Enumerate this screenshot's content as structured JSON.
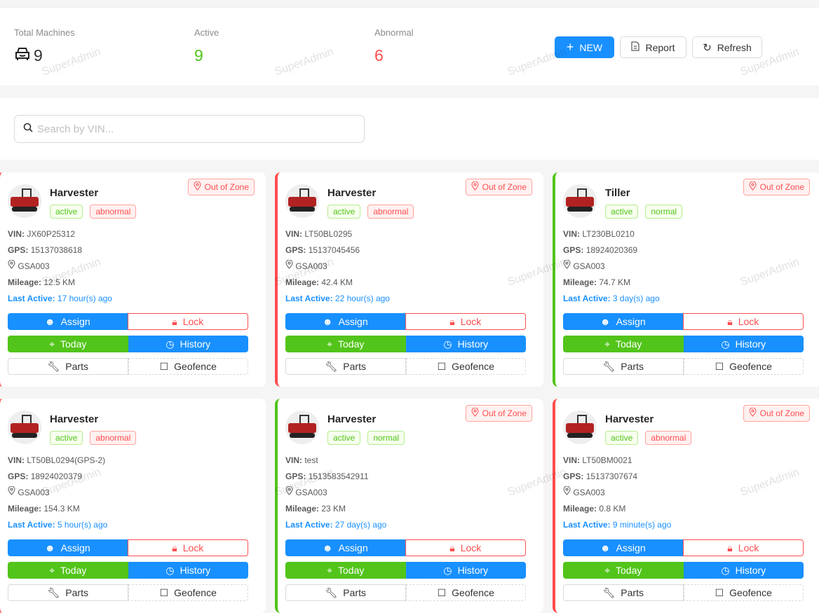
{
  "stats": {
    "total_label": "Total Machines",
    "total_value": "9",
    "active_label": "Active",
    "active_value": "9",
    "abnormal_label": "Abnormal",
    "abnormal_value": "6"
  },
  "toolbar": {
    "new_label": "NEW",
    "report_label": "Report",
    "refresh_label": "Refresh"
  },
  "search": {
    "placeholder": "Search by VIN...",
    "value": ""
  },
  "watermark": "SuperAdmin",
  "colors": {
    "primary": "#1890ff",
    "success": "#52c41a",
    "danger": "#ff4d4f"
  },
  "labels": {
    "vin": "VIN:",
    "gps": "GPS:",
    "mileage": "Mileage:",
    "last_active": "Last Active:",
    "out_of_zone": "Out of Zone",
    "assign": "Assign",
    "lock": "Lock",
    "today": "Today",
    "history": "History",
    "parts": "Parts",
    "geofence": "Geofence"
  },
  "machines": [
    {
      "name": "Harvester",
      "status": "active",
      "health": "abnormal",
      "out_of_zone": true,
      "vin": "JX60P25312",
      "gps": "15137038618",
      "zone": "GSA003",
      "mileage": "12.5 KM",
      "last_active": "17 hour(s) ago"
    },
    {
      "name": "Harvester",
      "status": "active",
      "health": "abnormal",
      "out_of_zone": true,
      "vin": "LT50BL0295",
      "gps": "15137045456",
      "zone": "GSA003",
      "mileage": "42.4 KM",
      "last_active": "22 hour(s) ago"
    },
    {
      "name": "Tiller",
      "status": "active",
      "health": "normal",
      "out_of_zone": true,
      "vin": "LT230BL0210",
      "gps": "18924020369",
      "zone": "GSA003",
      "mileage": "74.7 KM",
      "last_active": "3 day(s) ago"
    },
    {
      "name": "Harvester",
      "status": "active",
      "health": "abnormal",
      "out_of_zone": false,
      "vin": "LT50BL0294(GPS-2)",
      "gps": "18924020379",
      "zone": "GSA003",
      "mileage": "154.3 KM",
      "last_active": "5 hour(s) ago"
    },
    {
      "name": "Harvester",
      "status": "active",
      "health": "normal",
      "out_of_zone": true,
      "vin": "test",
      "gps": "1513583542911",
      "zone": "GSA003",
      "mileage": "23 KM",
      "last_active": "27 day(s) ago"
    },
    {
      "name": "Harvester",
      "status": "active",
      "health": "abnormal",
      "out_of_zone": true,
      "vin": "LT50BM0021",
      "gps": "15137307674",
      "zone": "GSA003",
      "mileage": "0.8 KM",
      "last_active": "9 minute(s) ago"
    }
  ]
}
